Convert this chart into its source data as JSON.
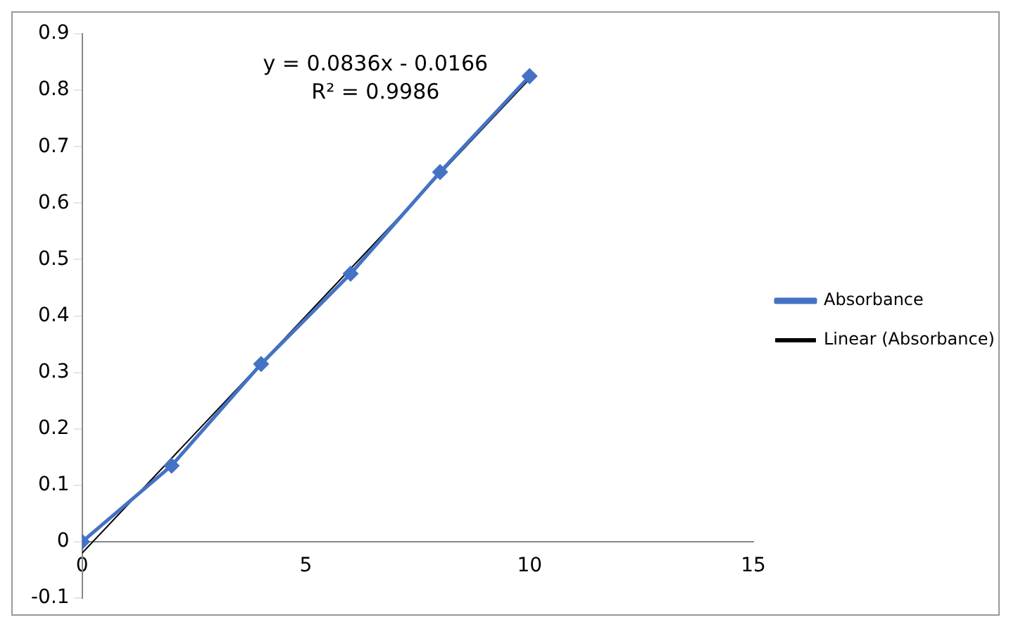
{
  "chart_data": {
    "type": "scatter",
    "x": [
      0,
      2,
      4,
      6,
      8,
      10
    ],
    "series": [
      {
        "name": "Absorbance",
        "type": "line",
        "color": "#4472c4",
        "marker": "diamond",
        "values": [
          0,
          0.135,
          0.315,
          0.475,
          0.655,
          0.825
        ]
      },
      {
        "name": "Linear (Absorbance)",
        "type": "line",
        "color": "#000000",
        "marker": "none",
        "x": [
          0,
          10
        ],
        "values": [
          -0.02,
          0.82
        ]
      }
    ],
    "xlim": [
      0,
      15
    ],
    "xticks": [
      0,
      5,
      10,
      15
    ],
    "ylim": [
      -0.1,
      0.9
    ],
    "yticks": [
      -0.1,
      0,
      0.1,
      0.2,
      0.3,
      0.4,
      0.5,
      0.6,
      0.7,
      0.8,
      0.9
    ],
    "grid": false,
    "legend": "right",
    "annotations": [
      "y = 0.0836x - 0.0166",
      "R² = 0.9986"
    ]
  }
}
